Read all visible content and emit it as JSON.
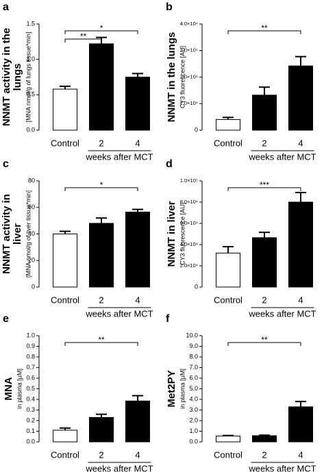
{
  "chart_data": [
    {
      "type": "bar",
      "panel": "a",
      "ylabel": [
        "NNMT activity in the",
        "lungs"
      ],
      "ylabel_sub": "[MNA nmol/g of lungs tissue*min]",
      "categories": [
        "Control",
        "2",
        "4"
      ],
      "xlabel": "weeks after MCT",
      "values": [
        0.58,
        1.22,
        0.75
      ],
      "errors": [
        0.04,
        0.09,
        0.05
      ],
      "colors": [
        "#ffffff",
        "#000000",
        "#000000"
      ],
      "ylim": [
        0,
        1.5
      ],
      "yticks": [
        {
          "value": 0,
          "label": "0.0"
        },
        0.5,
        {
          "value": 1,
          "label": "1.0"
        },
        1.5
      ],
      "annotations": [
        {
          "text": "**",
          "between": [
            "Control",
            "2"
          ]
        },
        {
          "text": "*",
          "between": [
            "Control",
            "4"
          ]
        }
      ]
    },
    {
      "type": "bar",
      "panel": "b",
      "ylabel": [
        "NNMT in the lungs"
      ],
      "ylabel_sub": "CY3 fluorescence [AU]",
      "categories": [
        "Control",
        "2",
        "4"
      ],
      "xlabel": "weeks after MCT",
      "values": [
        4000,
        13200,
        24200
      ],
      "errors": [
        800,
        3000,
        3500
      ],
      "colors": [
        "#ffffff",
        "#000000",
        "#000000"
      ],
      "ylim": [
        0,
        40000
      ],
      "yticks": [
        0,
        {
          "value": 10000,
          "label": "1.0×10⁴"
        },
        {
          "value": 20000,
          "label": "2.0×10⁴"
        },
        {
          "value": 30000,
          "label": "3.0×10⁴"
        },
        {
          "value": 40000,
          "label": "4.0×10⁴"
        }
      ],
      "annotations": [
        {
          "text": "**",
          "between": [
            "Control",
            "4"
          ]
        }
      ]
    },
    {
      "type": "bar",
      "panel": "c",
      "ylabel": [
        "NNMT activity in",
        "liver"
      ],
      "ylabel_sub": "[MNA nmol/g of liver tissue*min]",
      "categories": [
        "Control",
        "2",
        "4"
      ],
      "xlabel": "weeks after MCT",
      "values": [
        40,
        48,
        56.5
      ],
      "errors": [
        2,
        4,
        2
      ],
      "colors": [
        "#ffffff",
        "#000000",
        "#000000"
      ],
      "ylim": [
        0,
        80
      ],
      "yticks": [
        0,
        20,
        40,
        60,
        80
      ],
      "annotations": [
        {
          "text": "*",
          "between": [
            "Control",
            "4"
          ]
        }
      ]
    },
    {
      "type": "bar",
      "panel": "d",
      "ylabel": [
        "NNMT in liver"
      ],
      "ylabel_sub": "CY3 fluorescence [AU]",
      "categories": [
        "Control",
        "2",
        "4"
      ],
      "xlabel": "weeks after MCT",
      "values": [
        32000,
        46500,
        80000
      ],
      "errors": [
        6000,
        5000,
        9000
      ],
      "colors": [
        "#ffffff",
        "#000000",
        "#000000"
      ],
      "ylim": [
        0,
        100000
      ],
      "yticks": [
        0,
        {
          "value": 20000,
          "label": "2.0×10⁴"
        },
        {
          "value": 40000,
          "label": "4.0×10⁴"
        },
        {
          "value": 60000,
          "label": "6.0×10⁴"
        },
        {
          "value": 80000,
          "label": "8.0×10⁴"
        },
        {
          "value": 100000,
          "label": "1.0×10⁵"
        }
      ],
      "annotations": [
        {
          "text": "***",
          "between": [
            "Control",
            "4"
          ]
        }
      ]
    },
    {
      "type": "bar",
      "panel": "e",
      "ylabel": [
        "MNA"
      ],
      "ylabel_sub": "in plasma [μM]",
      "categories": [
        "Control",
        "2",
        "4"
      ],
      "xlabel": "weeks after MCT",
      "values": [
        0.11,
        0.23,
        0.385
      ],
      "errors": [
        0.02,
        0.03,
        0.05
      ],
      "colors": [
        "#ffffff",
        "#000000",
        "#000000"
      ],
      "ylim": [
        0,
        1
      ],
      "yticks": [
        {
          "value": 0,
          "label": "0.0"
        },
        0.1,
        0.2,
        0.3,
        0.4,
        0.5,
        0.6,
        0.7,
        0.8,
        0.9,
        {
          "value": 1,
          "label": "1.0"
        }
      ],
      "annotations": [
        {
          "text": "**",
          "between": [
            "Control",
            "4"
          ]
        }
      ]
    },
    {
      "type": "bar",
      "panel": "f",
      "ylabel": [
        "Met2PY"
      ],
      "ylabel_sub": "in plasma [μM]",
      "categories": [
        "Control",
        "2",
        "4"
      ],
      "xlabel": "weeks after MCT",
      "values": [
        0.55,
        0.58,
        3.3
      ],
      "errors": [
        0.05,
        0.05,
        0.5
      ],
      "colors": [
        "#ffffff",
        "#000000",
        "#000000"
      ],
      "ylim": [
        0,
        10
      ],
      "yticks": [
        {
          "value": 0,
          "label": "0.0"
        },
        {
          "value": 1,
          "label": "1.0"
        },
        {
          "value": 2,
          "label": "2.0"
        },
        {
          "value": 3,
          "label": "3.0"
        },
        {
          "value": 4,
          "label": "4.0"
        },
        {
          "value": 5,
          "label": "5.0"
        },
        {
          "value": 6,
          "label": "6.0"
        },
        {
          "value": 7,
          "label": "7.0"
        },
        {
          "value": 8,
          "label": "8.0"
        },
        {
          "value": 9,
          "label": "9.0"
        },
        {
          "value": 10,
          "label": "10.0"
        }
      ],
      "annotations": [
        {
          "text": "**",
          "between": [
            "Control",
            "4"
          ]
        }
      ]
    }
  ]
}
